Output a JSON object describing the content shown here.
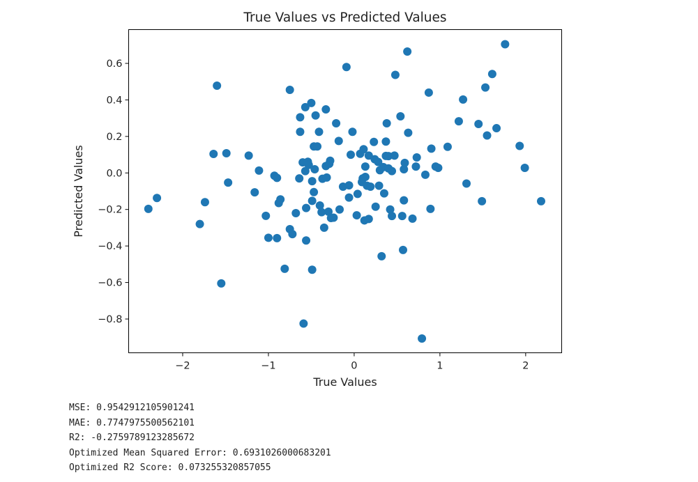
{
  "chart_data": {
    "type": "scatter",
    "title": "True Values vs Predicted Values",
    "xlabel": "True Values",
    "ylabel": "Predicted Values",
    "xlim": [
      -2.63,
      2.42
    ],
    "ylim": [
      -0.985,
      0.785
    ],
    "xticks": [
      -2,
      -1,
      0,
      1,
      2
    ],
    "xtick_labels": [
      "−2",
      "−1",
      "0",
      "1",
      "2"
    ],
    "yticks": [
      -0.8,
      -0.6,
      -0.4,
      -0.2,
      0.0,
      0.2,
      0.4,
      0.6
    ],
    "ytick_labels": [
      "−0.8",
      "−0.6",
      "−0.4",
      "−0.2",
      "0.0",
      "0.2",
      "0.4",
      "0.6"
    ],
    "grid": false,
    "marker_color": "#1f77b4",
    "points": [
      {
        "x": -2.4,
        "y": -0.197
      },
      {
        "x": -2.3,
        "y": -0.137
      },
      {
        "x": -1.8,
        "y": -0.28
      },
      {
        "x": -1.74,
        "y": -0.16
      },
      {
        "x": -1.64,
        "y": 0.104
      },
      {
        "x": -1.6,
        "y": 0.478
      },
      {
        "x": -1.55,
        "y": -0.605
      },
      {
        "x": -1.49,
        "y": 0.108
      },
      {
        "x": -1.47,
        "y": -0.053
      },
      {
        "x": -1.23,
        "y": 0.095
      },
      {
        "x": -1.16,
        "y": -0.106
      },
      {
        "x": -1.11,
        "y": 0.013
      },
      {
        "x": -1.03,
        "y": -0.235
      },
      {
        "x": -1.0,
        "y": -0.355
      },
      {
        "x": -0.93,
        "y": -0.015
      },
      {
        "x": -0.9,
        "y": -0.357
      },
      {
        "x": -0.9,
        "y": -0.027
      },
      {
        "x": -0.88,
        "y": -0.165
      },
      {
        "x": -0.86,
        "y": -0.145
      },
      {
        "x": -0.81,
        "y": -0.525
      },
      {
        "x": -0.75,
        "y": 0.455
      },
      {
        "x": -0.75,
        "y": -0.308
      },
      {
        "x": -0.72,
        "y": -0.335
      },
      {
        "x": -0.68,
        "y": -0.22
      },
      {
        "x": -0.64,
        "y": -0.03
      },
      {
        "x": -0.63,
        "y": 0.305
      },
      {
        "x": -0.63,
        "y": 0.225
      },
      {
        "x": -0.6,
        "y": 0.058
      },
      {
        "x": -0.59,
        "y": -0.825
      },
      {
        "x": -0.57,
        "y": 0.36
      },
      {
        "x": -0.57,
        "y": 0.01
      },
      {
        "x": -0.56,
        "y": -0.37
      },
      {
        "x": -0.56,
        "y": -0.192
      },
      {
        "x": -0.54,
        "y": 0.061
      },
      {
        "x": -0.53,
        "y": 0.044
      },
      {
        "x": -0.5,
        "y": 0.383
      },
      {
        "x": -0.49,
        "y": -0.53
      },
      {
        "x": -0.49,
        "y": -0.153
      },
      {
        "x": -0.49,
        "y": -0.045
      },
      {
        "x": -0.47,
        "y": -0.105
      },
      {
        "x": -0.47,
        "y": 0.145
      },
      {
        "x": -0.46,
        "y": 0.02
      },
      {
        "x": -0.45,
        "y": 0.315
      },
      {
        "x": -0.43,
        "y": 0.145
      },
      {
        "x": -0.41,
        "y": 0.225
      },
      {
        "x": -0.4,
        "y": -0.178
      },
      {
        "x": -0.38,
        "y": -0.215
      },
      {
        "x": -0.37,
        "y": -0.032
      },
      {
        "x": -0.35,
        "y": -0.3
      },
      {
        "x": -0.33,
        "y": 0.038
      },
      {
        "x": -0.33,
        "y": 0.348
      },
      {
        "x": -0.32,
        "y": -0.025
      },
      {
        "x": -0.3,
        "y": -0.212
      },
      {
        "x": -0.29,
        "y": 0.05
      },
      {
        "x": -0.28,
        "y": 0.067
      },
      {
        "x": -0.27,
        "y": -0.247
      },
      {
        "x": -0.24,
        "y": -0.245
      },
      {
        "x": -0.21,
        "y": 0.272
      },
      {
        "x": -0.18,
        "y": 0.175
      },
      {
        "x": -0.17,
        "y": -0.2
      },
      {
        "x": -0.13,
        "y": -0.075
      },
      {
        "x": -0.09,
        "y": 0.58
      },
      {
        "x": -0.06,
        "y": -0.135
      },
      {
        "x": -0.06,
        "y": -0.068
      },
      {
        "x": -0.04,
        "y": 0.1
      },
      {
        "x": -0.02,
        "y": 0.225
      },
      {
        "x": 0.03,
        "y": -0.232
      },
      {
        "x": 0.04,
        "y": -0.115
      },
      {
        "x": 0.07,
        "y": 0.105
      },
      {
        "x": 0.09,
        "y": -0.05
      },
      {
        "x": 0.1,
        "y": -0.03
      },
      {
        "x": 0.11,
        "y": 0.13
      },
      {
        "x": 0.12,
        "y": -0.26
      },
      {
        "x": 0.13,
        "y": 0.035
      },
      {
        "x": 0.13,
        "y": -0.022
      },
      {
        "x": 0.15,
        "y": -0.07
      },
      {
        "x": 0.17,
        "y": 0.095
      },
      {
        "x": 0.17,
        "y": -0.252
      },
      {
        "x": 0.19,
        "y": -0.075
      },
      {
        "x": 0.23,
        "y": 0.17
      },
      {
        "x": 0.24,
        "y": 0.075
      },
      {
        "x": 0.25,
        "y": -0.185
      },
      {
        "x": 0.28,
        "y": 0.06
      },
      {
        "x": 0.29,
        "y": -0.07
      },
      {
        "x": 0.3,
        "y": 0.015
      },
      {
        "x": 0.32,
        "y": -0.456
      },
      {
        "x": 0.34,
        "y": 0.032
      },
      {
        "x": 0.35,
        "y": -0.112
      },
      {
        "x": 0.37,
        "y": 0.093
      },
      {
        "x": 0.37,
        "y": 0.172
      },
      {
        "x": 0.38,
        "y": 0.272
      },
      {
        "x": 0.4,
        "y": 0.092
      },
      {
        "x": 0.4,
        "y": 0.025
      },
      {
        "x": 0.42,
        "y": -0.2
      },
      {
        "x": 0.44,
        "y": 0.01
      },
      {
        "x": 0.44,
        "y": -0.236
      },
      {
        "x": 0.47,
        "y": 0.095
      },
      {
        "x": 0.48,
        "y": 0.537
      },
      {
        "x": 0.54,
        "y": 0.31
      },
      {
        "x": 0.56,
        "y": -0.236
      },
      {
        "x": 0.57,
        "y": -0.422
      },
      {
        "x": 0.58,
        "y": -0.15
      },
      {
        "x": 0.58,
        "y": 0.02
      },
      {
        "x": 0.59,
        "y": 0.055
      },
      {
        "x": 0.62,
        "y": 0.665
      },
      {
        "x": 0.63,
        "y": 0.22
      },
      {
        "x": 0.68,
        "y": -0.25
      },
      {
        "x": 0.72,
        "y": 0.035
      },
      {
        "x": 0.73,
        "y": 0.085
      },
      {
        "x": 0.79,
        "y": -0.907
      },
      {
        "x": 0.83,
        "y": -0.01
      },
      {
        "x": 0.87,
        "y": 0.44
      },
      {
        "x": 0.89,
        "y": -0.197
      },
      {
        "x": 0.9,
        "y": 0.133
      },
      {
        "x": 0.95,
        "y": 0.035
      },
      {
        "x": 0.98,
        "y": 0.028
      },
      {
        "x": 1.09,
        "y": 0.143
      },
      {
        "x": 1.22,
        "y": 0.283
      },
      {
        "x": 1.27,
        "y": 0.402
      },
      {
        "x": 1.31,
        "y": -0.058
      },
      {
        "x": 1.45,
        "y": 0.268
      },
      {
        "x": 1.49,
        "y": -0.155
      },
      {
        "x": 1.53,
        "y": 0.468
      },
      {
        "x": 1.55,
        "y": 0.205
      },
      {
        "x": 1.61,
        "y": 0.542
      },
      {
        "x": 1.66,
        "y": 0.245
      },
      {
        "x": 1.76,
        "y": 0.705
      },
      {
        "x": 1.93,
        "y": 0.148
      },
      {
        "x": 1.99,
        "y": 0.028
      },
      {
        "x": 2.18,
        "y": -0.155
      }
    ]
  },
  "output": {
    "lines": [
      "MSE: 0.9542912105901241",
      "MAE: 0.7747975500562101",
      "R2: -0.2759789123285672",
      "Optimized Mean Squared Error: 0.6931026000683201",
      "Optimized R2 Score: 0.073255320857055"
    ]
  }
}
